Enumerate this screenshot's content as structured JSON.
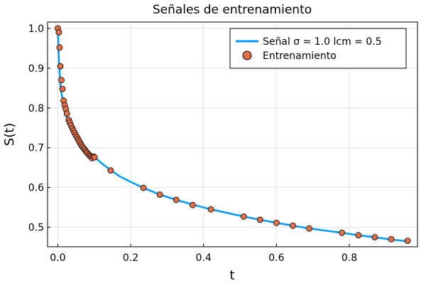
{
  "chart_data": {
    "type": "scatter",
    "title": "Señales de entrenamiento",
    "xlabel": "t",
    "ylabel": "S(t)",
    "xlim": [
      -0.028,
      0.987
    ],
    "ylim": [
      0.451,
      1.016
    ],
    "xticks": [
      0.0,
      0.2,
      0.4,
      0.6,
      0.8
    ],
    "xtick_labels": [
      "0.0",
      "0.2",
      "0.4",
      "0.6",
      "0.8"
    ],
    "yticks": [
      0.5,
      0.6,
      0.7,
      0.8,
      0.9,
      1.0
    ],
    "ytick_labels": [
      "0.5",
      "0.6",
      "0.7",
      "0.8",
      "0.9",
      "1.0"
    ],
    "grid": true,
    "legend_position": "top-right",
    "colors": {
      "line": "#009af9",
      "points": "#e26f46"
    },
    "series": [
      {
        "name": "Señal σ = 1.0 lcm = 0.5",
        "kind": "line",
        "x": [
          0.0,
          0.001,
          0.002,
          0.003,
          0.005,
          0.007,
          0.01,
          0.015,
          0.02,
          0.03,
          0.04,
          0.05,
          0.06,
          0.07,
          0.08,
          0.09,
          0.1,
          0.12,
          0.145,
          0.17,
          0.2,
          0.235,
          0.28,
          0.325,
          0.37,
          0.42,
          0.51,
          0.555,
          0.6,
          0.645,
          0.69,
          0.78,
          0.825,
          0.87,
          0.915,
          0.96
        ],
        "y": [
          1.0,
          0.975,
          0.945,
          0.92,
          0.89,
          0.86,
          0.838,
          0.815,
          0.79,
          0.762,
          0.743,
          0.727,
          0.715,
          0.704,
          0.694,
          0.685,
          0.677,
          0.661,
          0.644,
          0.628,
          0.614,
          0.599,
          0.582,
          0.569,
          0.557,
          0.545,
          0.527,
          0.519,
          0.511,
          0.504,
          0.497,
          0.486,
          0.48,
          0.475,
          0.469,
          0.465
        ]
      },
      {
        "name": "Entrenamiento",
        "kind": "scatter",
        "x": [
          0.0,
          0.003,
          0.005,
          0.007,
          0.01,
          0.013,
          0.016,
          0.019,
          0.022,
          0.025,
          0.03,
          0.033,
          0.036,
          0.04,
          0.043,
          0.046,
          0.05,
          0.053,
          0.056,
          0.059,
          0.062,
          0.065,
          0.068,
          0.072,
          0.075,
          0.078,
          0.081,
          0.085,
          0.088,
          0.091,
          0.094,
          0.098,
          0.101,
          0.145,
          0.235,
          0.28,
          0.325,
          0.37,
          0.42,
          0.51,
          0.555,
          0.6,
          0.645,
          0.69,
          0.78,
          0.825,
          0.87,
          0.915,
          0.96
        ],
        "y": [
          1.0,
          0.99,
          0.952,
          0.905,
          0.87,
          0.848,
          0.818,
          0.807,
          0.797,
          0.786,
          0.77,
          0.763,
          0.756,
          0.749,
          0.743,
          0.737,
          0.731,
          0.726,
          0.721,
          0.716,
          0.711,
          0.706,
          0.702,
          0.698,
          0.694,
          0.69,
          0.687,
          0.683,
          0.68,
          0.677,
          0.674,
          0.678,
          0.676,
          0.643,
          0.599,
          0.582,
          0.569,
          0.556,
          0.545,
          0.527,
          0.519,
          0.511,
          0.504,
          0.497,
          0.486,
          0.48,
          0.475,
          0.47,
          0.466
        ]
      }
    ]
  }
}
